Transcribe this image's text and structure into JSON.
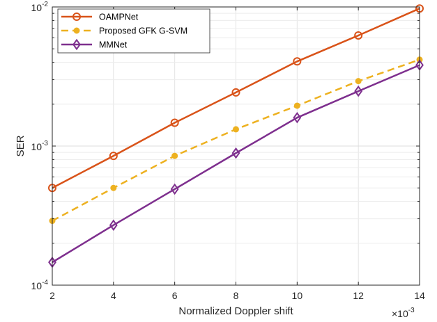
{
  "chart_data": {
    "type": "line",
    "xlabel": "Normalized Doppler shift",
    "ylabel": "SER",
    "x_multiplier_base": "×10",
    "x_multiplier_exp": "-3",
    "x": [
      2,
      4,
      6,
      8,
      10,
      12,
      14
    ],
    "x_tick_labels": [
      "2",
      "4",
      "6",
      "8",
      "10",
      "12",
      "14"
    ],
    "xlim": [
      2,
      14
    ],
    "yscale": "log",
    "ylim": [
      0.0001,
      0.01
    ],
    "y_tick_labels": [
      {
        "value": 0.01,
        "base": "10",
        "exp": "-2"
      },
      {
        "value": 0.001,
        "base": "10",
        "exp": "-3"
      },
      {
        "value": 0.0001,
        "base": "10",
        "exp": "-4"
      }
    ],
    "grid": true,
    "legend_position": "top-left",
    "series": [
      {
        "name": "OAMPNet",
        "color": "#D95319",
        "line_style": "solid",
        "marker": "circle",
        "values": [
          0.0005,
          0.00085,
          0.00147,
          0.00243,
          0.00406,
          0.00624,
          0.00975
        ]
      },
      {
        "name": "Proposed GFK G-SVM",
        "color": "#EDB120",
        "line_style": "dashed",
        "marker": "dot",
        "values": [
          0.00029,
          0.0005,
          0.00085,
          0.00132,
          0.00195,
          0.00293,
          0.00418
        ]
      },
      {
        "name": "MMNet",
        "color": "#7E2F8E",
        "line_style": "solid",
        "marker": "diamond",
        "values": [
          0.000146,
          0.00027,
          0.00049,
          0.00089,
          0.0016,
          0.00248,
          0.00382
        ]
      }
    ]
  }
}
